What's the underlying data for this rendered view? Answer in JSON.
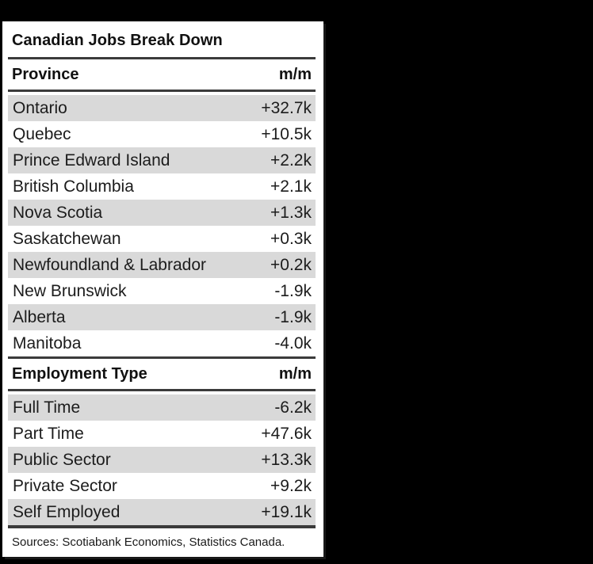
{
  "title": "Canadian Jobs Break Down",
  "sources": "Sources: Scotiabank Economics, Statistics Canada.",
  "colors": {
    "background": "#000000",
    "panel": "#ffffff",
    "row_alt": "#d9d9d9",
    "rule": "#3b3b3b",
    "text": "#1a1a1a"
  },
  "sections": [
    {
      "header": {
        "label": "Province",
        "value": "m/m"
      },
      "rows": [
        {
          "label": "Ontario",
          "value": "+32.7k"
        },
        {
          "label": "Quebec",
          "value": "+10.5k"
        },
        {
          "label": "Prince Edward Island",
          "value": "+2.2k"
        },
        {
          "label": "British Columbia",
          "value": "+2.1k"
        },
        {
          "label": "Nova Scotia",
          "value": "+1.3k"
        },
        {
          "label": "Saskatchewan",
          "value": "+0.3k"
        },
        {
          "label": "Newfoundland & Labrador",
          "value": "+0.2k"
        },
        {
          "label": "New Brunswick",
          "value": "-1.9k"
        },
        {
          "label": "Alberta",
          "value": "-1.9k"
        },
        {
          "label": "Manitoba",
          "value": "-4.0k"
        }
      ]
    },
    {
      "header": {
        "label": "Employment Type",
        "value": "m/m"
      },
      "rows": [
        {
          "label": "Full Time",
          "value": "-6.2k"
        },
        {
          "label": "Part Time",
          "value": "+47.6k"
        },
        {
          "label": "Public Sector",
          "value": "+13.3k"
        },
        {
          "label": "Private Sector",
          "value": "+9.2k"
        },
        {
          "label": "Self Employed",
          "value": "+19.1k"
        }
      ]
    }
  ],
  "chart_data": [
    {
      "type": "table",
      "title": "Canadian Jobs Break Down",
      "columns": [
        "Province",
        "m/m"
      ],
      "categories": [
        "Ontario",
        "Quebec",
        "Prince Edward Island",
        "British Columbia",
        "Nova Scotia",
        "Saskatchewan",
        "Newfoundland & Labrador",
        "New Brunswick",
        "Alberta",
        "Manitoba"
      ],
      "values_thousands": [
        32.7,
        10.5,
        2.2,
        2.1,
        1.3,
        0.3,
        0.2,
        -1.9,
        -1.9,
        -4.0
      ],
      "value_labels": [
        "+32.7k",
        "+10.5k",
        "+2.2k",
        "+2.1k",
        "+1.3k",
        "+0.3k",
        "+0.2k",
        "-1.9k",
        "-1.9k",
        "-4.0k"
      ]
    },
    {
      "type": "table",
      "title": "Canadian Jobs Break Down",
      "columns": [
        "Employment Type",
        "m/m"
      ],
      "categories": [
        "Full Time",
        "Part Time",
        "Public Sector",
        "Private Sector",
        "Self Employed"
      ],
      "values_thousands": [
        -6.2,
        47.6,
        13.3,
        9.2,
        19.1
      ],
      "value_labels": [
        "-6.2k",
        "+47.6k",
        "+13.3k",
        "+9.2k",
        "+19.1k"
      ]
    }
  ]
}
